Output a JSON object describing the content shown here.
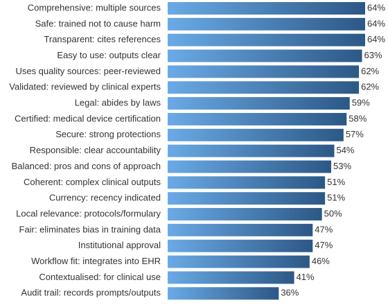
{
  "chart_data": {
    "type": "hbar",
    "categories": [
      "Comprehensive: multiple sources",
      "Safe: trained not to cause harm",
      "Transparent: cites references",
      "Easy to use: outputs clear",
      "Uses quality sources: peer-reviewed",
      "Validated: reviewed by clinical experts",
      "Legal: abides by laws",
      "Certified: medical device certification",
      "Secure: strong protections",
      "Responsible: clear accountability",
      "Balanced: pros and cons of approach",
      "Coherent: complex clinical outputs",
      "Currency: recency indicated",
      "Local relevance: protocols/formulary",
      "Fair: eliminates bias in training data",
      "Institutional approval",
      "Workflow fit: integrates into EHR",
      "Contextualised: for clinical use",
      "Audit trail: records prompts/outputs"
    ],
    "values": [
      64,
      64,
      64,
      63,
      62,
      62,
      59,
      58,
      57,
      54,
      53,
      51,
      51,
      50,
      47,
      47,
      46,
      41,
      36
    ],
    "value_labels": [
      "64%",
      "64%",
      "64%",
      "63%",
      "62%",
      "62%",
      "59%",
      "58%",
      "57%",
      "54%",
      "53%",
      "51%",
      "51%",
      "50%",
      "47%",
      "47%",
      "46%",
      "41%",
      "36%"
    ],
    "gradient": [
      "#6aaae6",
      "#2c5886"
    ]
  }
}
